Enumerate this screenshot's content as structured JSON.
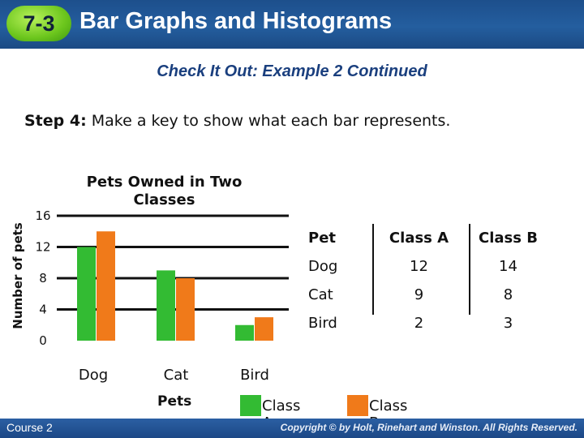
{
  "header": {
    "badge": "7-3",
    "title": "Bar Graphs and Histograms",
    "badge_color": "#6cc61d",
    "band_color": "#245e9f"
  },
  "subtitle": "Check It Out: Example 2 Continued",
  "step": {
    "label": "Step 4:",
    "text": "Make a key to show what each bar represents."
  },
  "chart_data": {
    "type": "bar",
    "title": "Pets Owned in Two Classes",
    "xlabel": "Pets",
    "ylabel": "Number of pets",
    "categories": [
      "Dog",
      "Cat",
      "Bird"
    ],
    "yticks": [
      "0",
      "4",
      "8",
      "12",
      "16"
    ],
    "ylim": [
      0,
      16
    ],
    "grid": true,
    "series": [
      {
        "name": "Class A",
        "values": [
          12,
          9,
          2
        ],
        "color": "#33bb33"
      },
      {
        "name": "Class B",
        "values": [
          14,
          8,
          3
        ],
        "color": "#f07a1a"
      }
    ]
  },
  "table": {
    "headers": [
      "Pet",
      "Class A",
      "Class B"
    ],
    "rows": [
      [
        "Dog",
        "12",
        "14"
      ],
      [
        "Cat",
        "9",
        "8"
      ],
      [
        "Bird",
        "2",
        "3"
      ]
    ]
  },
  "footer": {
    "course": "Course 2",
    "copyright": "Copyright © by Holt, Rinehart and Winston. All Rights Reserved."
  }
}
